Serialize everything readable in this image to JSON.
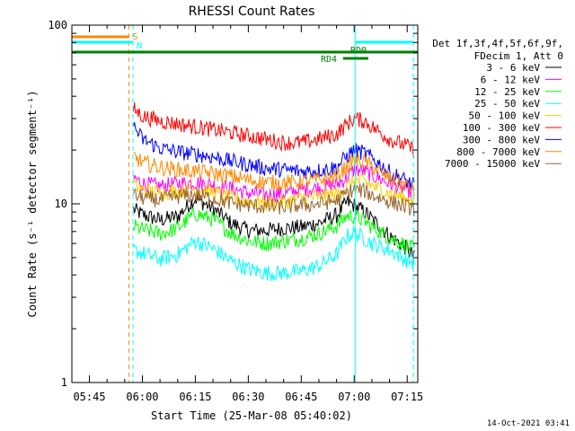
{
  "chart_data": {
    "type": "line",
    "title": "RHESSI Count Rates",
    "xlabel": "Start Time (25-Mar-08 05:40:02)",
    "ylabel": "Count Rate (s⁻¹ detector segment⁻¹)",
    "y_scale": "log",
    "ylim": [
      1,
      100
    ],
    "xlim": [
      "05:40:02",
      "07:18:00"
    ],
    "x_ticks": [
      "05:45",
      "06:00",
      "06:15",
      "06:30",
      "06:45",
      "07:00",
      "07:15"
    ],
    "y_ticks": [
      "1",
      "10",
      "100"
    ],
    "legend_header": [
      "Det 1f,3f,4f,5f,6f,9f,",
      "FDecim 1, Att 0"
    ],
    "legend_position": "right",
    "data_start": "05:57:30",
    "x": [
      "05:57:30",
      "06:00",
      "06:05",
      "06:10",
      "06:15",
      "06:20",
      "06:25",
      "06:30",
      "06:35",
      "06:40",
      "06:45",
      "06:50",
      "06:55",
      "06:58",
      "07:00",
      "07:03",
      "07:05",
      "07:10",
      "07:15",
      "07:17"
    ],
    "series": [
      {
        "name": "3 - 6 keV",
        "color": "#000000",
        "values": [
          9.3,
          8.7,
          8.1,
          8.5,
          10.7,
          9.4,
          7.8,
          7.1,
          7.1,
          7.3,
          7.4,
          7.8,
          8.6,
          10.2,
          9.8,
          9.0,
          8.2,
          6.6,
          5.6,
          5.0
        ]
      },
      {
        "name": "6 - 12 keV",
        "color": "#ff00ff",
        "values": [
          14.0,
          13.0,
          12.5,
          13.0,
          13.2,
          12.8,
          12.2,
          11.5,
          11.2,
          11.4,
          12.0,
          12.3,
          12.8,
          14.0,
          15.5,
          15.2,
          14.5,
          13.0,
          12.0,
          11.5
        ]
      },
      {
        "name": "12 - 25 keV",
        "color": "#00ff00",
        "values": [
          7.5,
          7.2,
          6.8,
          7.3,
          8.8,
          8.2,
          6.9,
          6.2,
          6.0,
          6.2,
          6.4,
          6.8,
          7.5,
          8.6,
          8.5,
          8.0,
          7.4,
          6.5,
          5.8,
          5.6
        ]
      },
      {
        "name": "25 - 50 keV",
        "color": "#00ffff",
        "values": [
          5.5,
          5.3,
          4.9,
          5.2,
          6.2,
          5.6,
          4.8,
          4.3,
          4.1,
          4.1,
          4.2,
          4.5,
          5.2,
          6.6,
          6.9,
          6.4,
          6.0,
          5.5,
          4.8,
          4.7
        ]
      },
      {
        "name": "50 - 100 keV",
        "color": "#ffcc00",
        "values": [
          12.8,
          12.0,
          11.5,
          11.8,
          12.2,
          11.6,
          10.8,
          10.3,
          10.1,
          10.2,
          10.8,
          11.0,
          11.3,
          12.5,
          13.5,
          13.3,
          12.6,
          11.4,
          10.6,
          10.3
        ]
      },
      {
        "name": "100 - 300 keV",
        "color": "#ff0000",
        "values": [
          34,
          31,
          29,
          28,
          27,
          26,
          25,
          24,
          23,
          22,
          22,
          23,
          24.5,
          28,
          30,
          29,
          27,
          23,
          21,
          20
        ]
      },
      {
        "name": "300 - 800 keV",
        "color": "#0000ff",
        "values": [
          27,
          23,
          20.5,
          19.5,
          19,
          18.3,
          17.3,
          16.6,
          15.8,
          15.5,
          15.2,
          15.4,
          16,
          18.5,
          20,
          19.2,
          18,
          15,
          13.3,
          12.6
        ]
      },
      {
        "name": "800 - 7000 keV",
        "color": "#ff8800",
        "values": [
          18.5,
          17,
          16,
          15.5,
          15.2,
          14.8,
          14.3,
          13.6,
          13.2,
          13.1,
          13.3,
          13.6,
          14.2,
          16.2,
          17.5,
          17.2,
          16.2,
          13.8,
          12.6,
          12.0
        ]
      },
      {
        "name": "7000 - 15000 keV",
        "color": "#996633",
        "values": [
          11.2,
          10.8,
          10.5,
          11.0,
          11.2,
          10.7,
          10.1,
          9.8,
          9.6,
          9.6,
          9.8,
          10.0,
          10.4,
          11.5,
          12.0,
          11.8,
          11.2,
          10.3,
          9.6,
          9.4
        ]
      }
    ],
    "vertical_lines": [
      {
        "time": "05:40:02",
        "color": "#00ffff",
        "style": "solid"
      },
      {
        "time": "05:56:10",
        "color": "#ff8800",
        "style": "dashed"
      },
      {
        "time": "05:57:20",
        "color": "#00ffff",
        "style": "dashed"
      },
      {
        "time": "07:00:15",
        "color": "#00ffff",
        "style": "solid"
      },
      {
        "time": "07:16:45",
        "color": "#00ffff",
        "style": "dashed"
      }
    ],
    "flag_bars": [
      {
        "label": "S",
        "color": "#ff8800",
        "start": "05:40:02",
        "end": "05:56:10",
        "row": 0
      },
      {
        "label": "N",
        "color": "#00ffff",
        "start": "05:40:02",
        "end": "05:57:20",
        "row": 1
      },
      {
        "label": "",
        "color": "#00ffff",
        "start": "07:00:15",
        "end": "07:16:45",
        "row": 1
      },
      {
        "label": "RD0",
        "color": "#008000",
        "start": "05:40:02",
        "end": "07:18:00",
        "row": 2
      },
      {
        "label": "RD4",
        "color": "#008000",
        "start": "06:56:50",
        "end": "07:04:00",
        "row": 3
      }
    ]
  },
  "footer": {
    "timestamp": "14-Oct-2021 03:41"
  }
}
